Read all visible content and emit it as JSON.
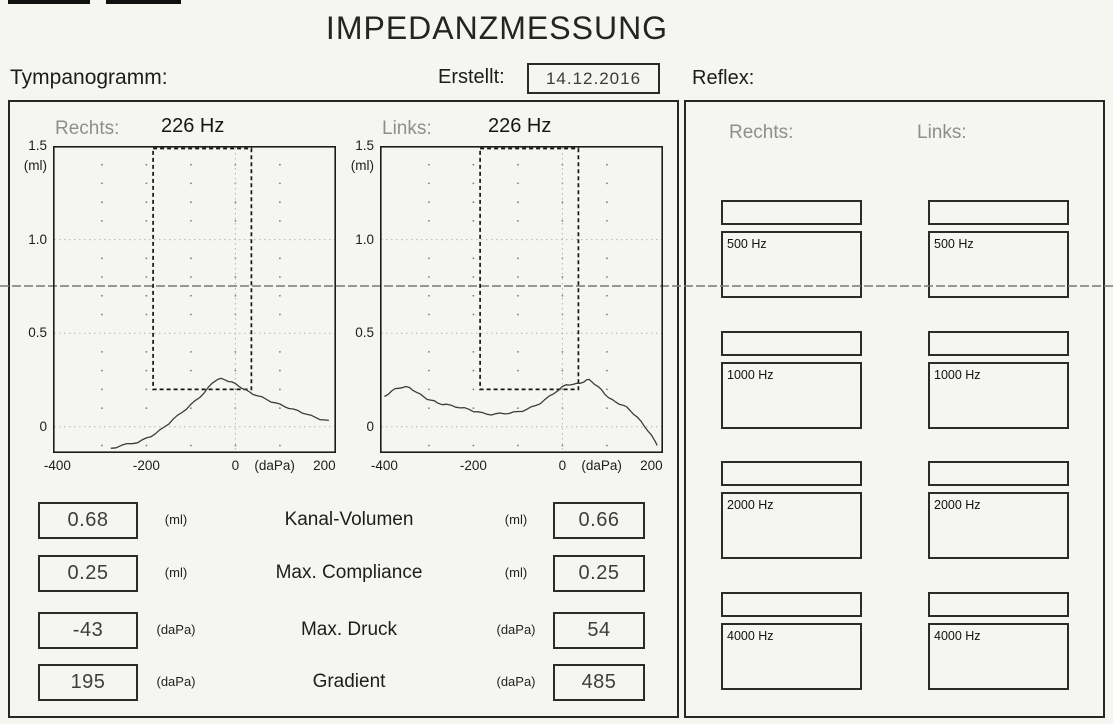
{
  "page": {
    "title": "IMPEDANZMESSUNG"
  },
  "header": {
    "tympanogram_label": "Tympanogramm:",
    "created_label": "Erstellt:",
    "created_date": "14.12.2016",
    "reflex_label": "Reflex:"
  },
  "chart_data": [
    {
      "type": "line",
      "ear_label": "Rechts:",
      "probe_tone": "226 Hz",
      "ylabel": "(ml)",
      "xunit": "(daPa)",
      "xlabel": "",
      "xlim": [
        -410,
        226
      ],
      "ylim": [
        -0.14,
        1.5
      ],
      "grid": {
        "h_gridlines": [
          1.0,
          0.5,
          0.0
        ],
        "v_gridline": 0,
        "dot_columns": [
          -300,
          -200,
          -100,
          0,
          100
        ],
        "dot_row_step": 0.1
      },
      "yticks": [
        {
          "v": 1.5,
          "label": "1.5"
        },
        {
          "v": 1.0,
          "label": "1.0"
        },
        {
          "v": 0.5,
          "label": "0.5"
        },
        {
          "v": 0.0,
          "label": "0"
        }
      ],
      "xticks": [
        {
          "v": -400,
          "label": "-400"
        },
        {
          "v": -200,
          "label": "-200"
        },
        {
          "v": 0,
          "label": "0"
        },
        {
          "v": 200,
          "label": "200"
        }
      ],
      "normal_range_box": {
        "x1": -185,
        "x2": 36,
        "y_bottom": 0.2,
        "y_top": 1.5
      },
      "series": [
        {
          "name": "tympanogram-rechts",
          "points": [
            [
              -280,
              -0.115
            ],
            [
              -268,
              -0.108
            ],
            [
              -256,
              -0.1
            ],
            [
              -244,
              -0.094
            ],
            [
              -232,
              -0.088
            ],
            [
              -220,
              -0.082
            ],
            [
              -210,
              -0.073
            ],
            [
              -200,
              -0.062
            ],
            [
              -190,
              -0.05
            ],
            [
              -180,
              -0.036
            ],
            [
              -170,
              -0.02
            ],
            [
              -160,
              -0.002
            ],
            [
              -150,
              0.018
            ],
            [
              -140,
              0.04
            ],
            [
              -130,
              0.058
            ],
            [
              -120,
              0.078
            ],
            [
              -110,
              0.098
            ],
            [
              -100,
              0.118
            ],
            [
              -90,
              0.138
            ],
            [
              -80,
              0.16
            ],
            [
              -70,
              0.184
            ],
            [
              -60,
              0.21
            ],
            [
              -52,
              0.232
            ],
            [
              -46,
              0.247
            ],
            [
              -40,
              0.253
            ],
            [
              -32,
              0.255
            ],
            [
              -24,
              0.252
            ],
            [
              -16,
              0.246
            ],
            [
              -8,
              0.238
            ],
            [
              0,
              0.228
            ],
            [
              8,
              0.218
            ],
            [
              16,
              0.206
            ],
            [
              24,
              0.194
            ],
            [
              32,
              0.184
            ],
            [
              40,
              0.176
            ],
            [
              50,
              0.166
            ],
            [
              60,
              0.156
            ],
            [
              70,
              0.146
            ],
            [
              80,
              0.136
            ],
            [
              90,
              0.127
            ],
            [
              100,
              0.118
            ],
            [
              110,
              0.11
            ],
            [
              120,
              0.101
            ],
            [
              130,
              0.092
            ],
            [
              140,
              0.085
            ],
            [
              150,
              0.077
            ],
            [
              160,
              0.068
            ],
            [
              170,
              0.058
            ],
            [
              180,
              0.05
            ],
            [
              190,
              0.042
            ],
            [
              200,
              0.036
            ],
            [
              210,
              0.03
            ]
          ]
        }
      ]
    },
    {
      "type": "line",
      "ear_label": "Links:",
      "probe_tone": "226 Hz",
      "ylabel": "(ml)",
      "xunit": "(daPa)",
      "xlabel": "",
      "xlim": [
        -410,
        226
      ],
      "ylim": [
        -0.14,
        1.5
      ],
      "grid": {
        "h_gridlines": [
          1.0,
          0.5,
          0.0
        ],
        "v_gridline": 0,
        "dot_columns": [
          -300,
          -200,
          -100,
          0,
          100
        ],
        "dot_row_step": 0.1
      },
      "yticks": [
        {
          "v": 1.5,
          "label": "1.5"
        },
        {
          "v": 1.0,
          "label": "1.0"
        },
        {
          "v": 0.5,
          "label": "0.5"
        },
        {
          "v": 0.0,
          "label": "0"
        }
      ],
      "xticks": [
        {
          "v": -400,
          "label": "-400"
        },
        {
          "v": -200,
          "label": "-200"
        },
        {
          "v": 0,
          "label": "0"
        },
        {
          "v": 200,
          "label": "200"
        }
      ],
      "normal_range_box": {
        "x1": -185,
        "x2": 36,
        "y_bottom": 0.2,
        "y_top": 1.5
      },
      "series": [
        {
          "name": "tympanogram-links",
          "points": [
            [
              -400,
              0.162
            ],
            [
              -392,
              0.176
            ],
            [
              -384,
              0.19
            ],
            [
              -376,
              0.2
            ],
            [
              -368,
              0.208
            ],
            [
              -360,
              0.212
            ],
            [
              -352,
              0.212
            ],
            [
              -344,
              0.207
            ],
            [
              -336,
              0.198
            ],
            [
              -328,
              0.186
            ],
            [
              -320,
              0.172
            ],
            [
              -312,
              0.16
            ],
            [
              -304,
              0.15
            ],
            [
              -296,
              0.142
            ],
            [
              -288,
              0.135
            ],
            [
              -280,
              0.128
            ],
            [
              -270,
              0.122
            ],
            [
              -260,
              0.118
            ],
            [
              -250,
              0.112
            ],
            [
              -240,
              0.108
            ],
            [
              -230,
              0.103
            ],
            [
              -220,
              0.098
            ],
            [
              -210,
              0.092
            ],
            [
              -200,
              0.085
            ],
            [
              -190,
              0.08
            ],
            [
              -180,
              0.072
            ],
            [
              -170,
              0.068
            ],
            [
              -160,
              0.067
            ],
            [
              -150,
              0.068
            ],
            [
              -140,
              0.07
            ],
            [
              -130,
              0.072
            ],
            [
              -120,
              0.074
            ],
            [
              -110,
              0.076
            ],
            [
              -100,
              0.08
            ],
            [
              -90,
              0.086
            ],
            [
              -80,
              0.094
            ],
            [
              -70,
              0.103
            ],
            [
              -60,
              0.114
            ],
            [
              -50,
              0.127
            ],
            [
              -40,
              0.143
            ],
            [
              -30,
              0.16
            ],
            [
              -20,
              0.178
            ],
            [
              -10,
              0.196
            ],
            [
              0,
              0.212
            ],
            [
              8,
              0.222
            ],
            [
              16,
              0.227
            ],
            [
              24,
              0.228
            ],
            [
              32,
              0.228
            ],
            [
              40,
              0.232
            ],
            [
              48,
              0.243
            ],
            [
              54,
              0.25
            ],
            [
              60,
              0.249
            ],
            [
              66,
              0.242
            ],
            [
              72,
              0.23
            ],
            [
              80,
              0.213
            ],
            [
              88,
              0.195
            ],
            [
              96,
              0.175
            ],
            [
              104,
              0.157
            ],
            [
              112,
              0.142
            ],
            [
              120,
              0.131
            ],
            [
              128,
              0.124
            ],
            [
              136,
              0.115
            ],
            [
              144,
              0.103
            ],
            [
              152,
              0.088
            ],
            [
              160,
              0.07
            ],
            [
              168,
              0.05
            ],
            [
              176,
              0.028
            ],
            [
              184,
              0.006
            ],
            [
              192,
              -0.02
            ],
            [
              200,
              -0.048
            ],
            [
              208,
              -0.078
            ],
            [
              213,
              -0.095
            ]
          ]
        }
      ]
    }
  ],
  "results": {
    "rows": [
      {
        "left": "0.68",
        "left_unit": "(ml)",
        "label": "Kanal-Volumen",
        "right_unit": "(ml)",
        "right": "0.66"
      },
      {
        "left": "0.25",
        "left_unit": "(ml)",
        "label": "Max. Compliance",
        "right_unit": "(ml)",
        "right": "0.25"
      },
      {
        "left": "-43",
        "left_unit": "(daPa)",
        "label": "Max. Druck",
        "right_unit": "(daPa)",
        "right": "54"
      },
      {
        "left": "195",
        "left_unit": "(daPa)",
        "label": "Gradient",
        "right_unit": "(daPa)",
        "right": "485"
      }
    ]
  },
  "reflex": {
    "columns": [
      {
        "label": "Rechts:"
      },
      {
        "label": "Links:"
      }
    ],
    "frequencies": [
      "500 Hz",
      "1000 Hz",
      "2000 Hz",
      "4000 Hz"
    ]
  },
  "colors": {
    "paper": "#f5f5f2",
    "ink": "#1f1f1f",
    "muted_label": "#8e8e8e",
    "gridline": "#b5b5b5",
    "grid_dot": "#7d7d7d",
    "curve": "#3c3c3c",
    "scan_artifact": "#787878"
  }
}
